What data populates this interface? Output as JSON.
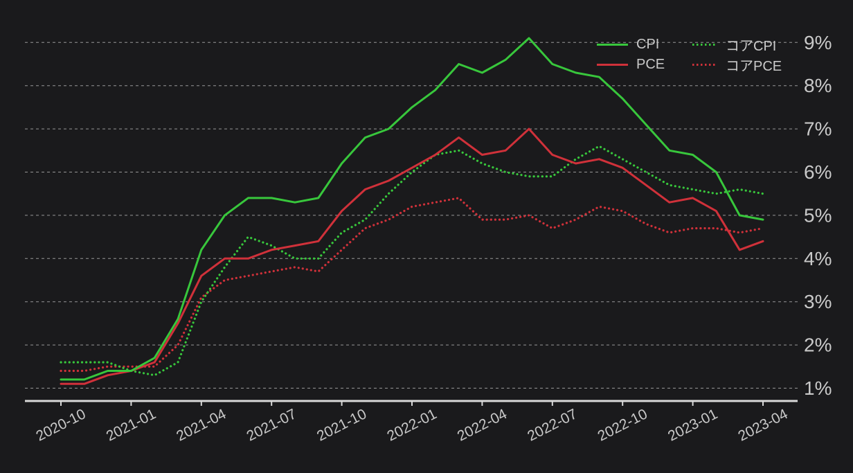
{
  "chart_data": {
    "type": "line",
    "title": "",
    "xlabel": "",
    "ylabel": "",
    "grid": "horizontal-dashed",
    "legend_position": "top-right",
    "x": [
      "2020-10",
      "2020-11",
      "2020-12",
      "2021-01",
      "2021-02",
      "2021-03",
      "2021-04",
      "2021-05",
      "2021-06",
      "2021-07",
      "2021-08",
      "2021-09",
      "2021-10",
      "2021-11",
      "2021-12",
      "2022-01",
      "2022-02",
      "2022-03",
      "2022-04",
      "2022-05",
      "2022-06",
      "2022-07",
      "2022-08",
      "2022-09",
      "2022-10",
      "2022-11",
      "2022-12",
      "2023-01",
      "2023-02",
      "2023-03",
      "2023-04"
    ],
    "x_tick_every": 3,
    "x_tick_labels": [
      "2020-10",
      "2021-01",
      "2021-04",
      "2021-07",
      "2021-10",
      "2022-01",
      "2022-04",
      "2022-07",
      "2022-10",
      "2023-01",
      "2023-04"
    ],
    "y_ticks": [
      1,
      2,
      3,
      4,
      5,
      6,
      7,
      8,
      9
    ],
    "y_tick_labels": [
      "1%",
      "2%",
      "3%",
      "4%",
      "5%",
      "6%",
      "7%",
      "8%",
      "9%"
    ],
    "ylim": [
      0.9,
      9.2
    ],
    "series": [
      {
        "name": "CPI",
        "style": "solid",
        "color": "#38c73c",
        "values": [
          1.2,
          1.2,
          1.4,
          1.4,
          1.7,
          2.6,
          4.2,
          5.0,
          5.4,
          5.4,
          5.3,
          5.4,
          6.2,
          6.8,
          7.0,
          7.5,
          7.9,
          8.5,
          8.3,
          8.6,
          9.1,
          8.5,
          8.3,
          8.2,
          7.7,
          7.1,
          6.5,
          6.4,
          6.0,
          5.0,
          4.9
        ]
      },
      {
        "name": "PCE",
        "style": "solid",
        "color": "#d0313a",
        "values": [
          1.1,
          1.1,
          1.3,
          1.4,
          1.6,
          2.5,
          3.6,
          4.0,
          4.0,
          4.2,
          4.3,
          4.4,
          5.1,
          5.6,
          5.8,
          6.1,
          6.4,
          6.8,
          6.4,
          6.5,
          7.0,
          6.4,
          6.2,
          6.3,
          6.1,
          5.7,
          5.3,
          5.4,
          5.1,
          4.2,
          4.4
        ]
      },
      {
        "name": "コアCPI",
        "style": "dotted",
        "color": "#38c73c",
        "values": [
          1.6,
          1.6,
          1.6,
          1.4,
          1.3,
          1.6,
          3.0,
          3.8,
          4.5,
          4.3,
          4.0,
          4.0,
          4.6,
          4.9,
          5.5,
          6.0,
          6.4,
          6.5,
          6.2,
          6.0,
          5.9,
          5.9,
          6.3,
          6.6,
          6.3,
          6.0,
          5.7,
          5.6,
          5.5,
          5.6,
          5.5
        ]
      },
      {
        "name": "コアPCE",
        "style": "dotted",
        "color": "#d0313a",
        "values": [
          1.4,
          1.4,
          1.5,
          1.5,
          1.5,
          2.0,
          3.1,
          3.5,
          3.6,
          3.7,
          3.8,
          3.7,
          4.2,
          4.7,
          4.9,
          5.2,
          5.3,
          5.4,
          4.9,
          4.9,
          5.0,
          4.7,
          4.9,
          5.2,
          5.1,
          4.8,
          4.6,
          4.7,
          4.7,
          4.6,
          4.7
        ]
      }
    ],
    "colors": {
      "background": "#1a1a1c",
      "grid": "#b8b8b8",
      "axis": "#d9d9d9",
      "text": "#c9c9c9"
    }
  }
}
